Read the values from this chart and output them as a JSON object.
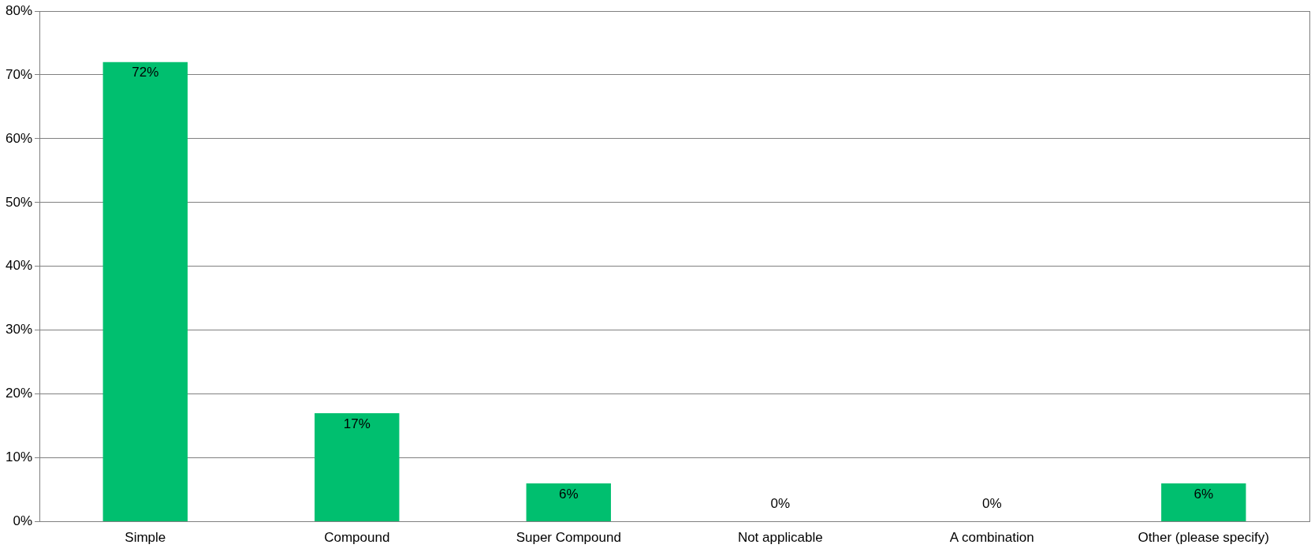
{
  "chart_data": {
    "type": "bar",
    "categories": [
      "Simple",
      "Compound",
      "Super Compound",
      "Not applicable",
      "A combination",
      "Other (please specify)"
    ],
    "values": [
      72,
      17,
      6,
      0,
      0,
      6
    ],
    "color": "#00bf6f",
    "ylim": [
      0,
      80
    ],
    "yticks": [
      {
        "value": 0,
        "label": "0%"
      },
      {
        "value": 10,
        "label": "10%"
      },
      {
        "value": 20,
        "label": "20%"
      },
      {
        "value": 30,
        "label": "30%"
      },
      {
        "value": 40,
        "label": "40%"
      },
      {
        "value": 50,
        "label": "50%"
      },
      {
        "value": 60,
        "label": "60%"
      },
      {
        "value": 70,
        "label": "70%"
      },
      {
        "value": 80,
        "label": "80%"
      }
    ],
    "value_labels": [
      "72%",
      "17%",
      "6%",
      "0%",
      "0%",
      "6%"
    ],
    "grid": "y",
    "legend": false
  }
}
